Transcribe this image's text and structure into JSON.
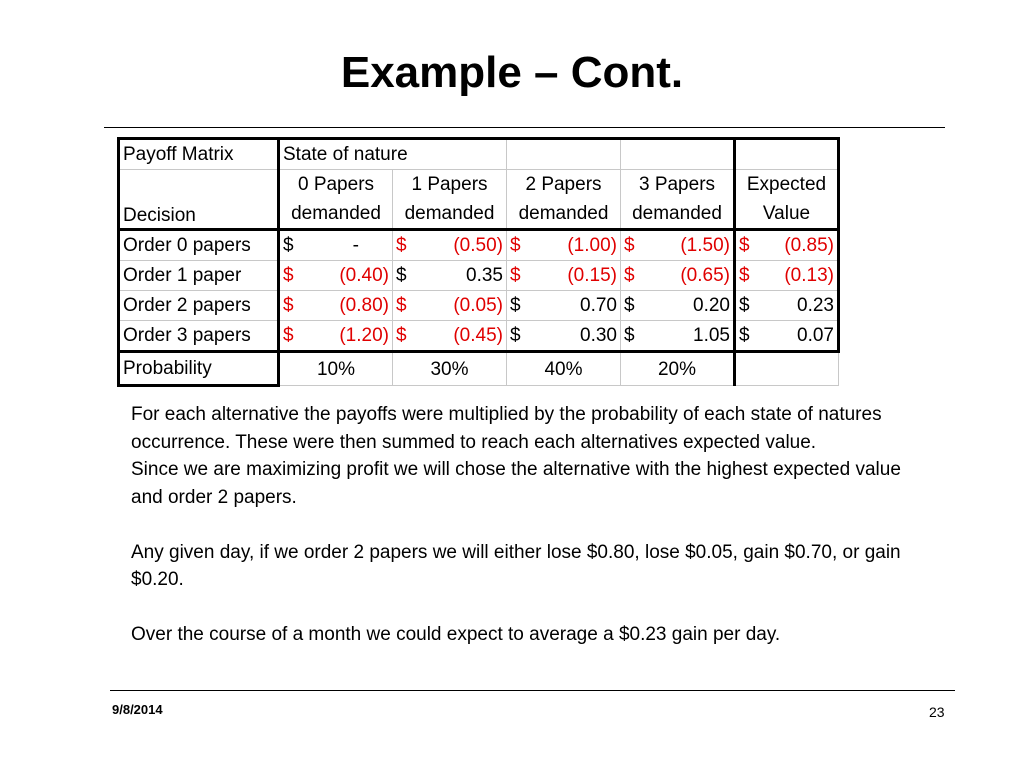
{
  "slide": {
    "title": "Example – Cont.",
    "date": "9/8/2014",
    "page_number": "23"
  },
  "table": {
    "corner_label": "Payoff Matrix",
    "state_header": "State of nature",
    "decision_label": "Decision",
    "columns": [
      {
        "line1": "0 Papers",
        "line2": "demanded"
      },
      {
        "line1": "1 Papers",
        "line2": "demanded"
      },
      {
        "line1": "2 Papers",
        "line2": "demanded"
      },
      {
        "line1": "3 Papers",
        "line2": "demanded"
      },
      {
        "line1": "Expected",
        "line2": "Value"
      }
    ],
    "rows": [
      {
        "label": "Order 0 papers",
        "cells": [
          {
            "sym": "$",
            "val": "-",
            "neg": false
          },
          {
            "sym": "$",
            "val": "(0.50)",
            "neg": true
          },
          {
            "sym": "$",
            "val": "(1.00)",
            "neg": true
          },
          {
            "sym": "$",
            "val": "(1.50)",
            "neg": true
          },
          {
            "sym": "$",
            "val": "(0.85)",
            "neg": true
          }
        ]
      },
      {
        "label": "Order 1 paper",
        "cells": [
          {
            "sym": "$",
            "val": "(0.40)",
            "neg": true
          },
          {
            "sym": "$",
            "val": "0.35",
            "neg": false
          },
          {
            "sym": "$",
            "val": "(0.15)",
            "neg": true
          },
          {
            "sym": "$",
            "val": "(0.65)",
            "neg": true
          },
          {
            "sym": "$",
            "val": "(0.13)",
            "neg": true
          }
        ]
      },
      {
        "label": "Order 2 papers",
        "cells": [
          {
            "sym": "$",
            "val": "(0.80)",
            "neg": true
          },
          {
            "sym": "$",
            "val": "(0.05)",
            "neg": true
          },
          {
            "sym": "$",
            "val": "0.70",
            "neg": false
          },
          {
            "sym": "$",
            "val": "0.20",
            "neg": false
          },
          {
            "sym": "$",
            "val": "0.23",
            "neg": false
          }
        ]
      },
      {
        "label": "Order 3 papers",
        "cells": [
          {
            "sym": "$",
            "val": "(1.20)",
            "neg": true
          },
          {
            "sym": "$",
            "val": "(0.45)",
            "neg": true
          },
          {
            "sym": "$",
            "val": "0.30",
            "neg": false
          },
          {
            "sym": "$",
            "val": "1.05",
            "neg": false
          },
          {
            "sym": "$",
            "val": "0.07",
            "neg": false
          }
        ]
      }
    ],
    "probability_label": "Probability",
    "probabilities": [
      "10%",
      "30%",
      "40%",
      "20%",
      ""
    ]
  },
  "body": {
    "paragraph1": "For each alternative the payoffs were multiplied by the probability of each state of natures occurrence.  These were then summed to reach each alternatives expected value.",
    "paragraph2": "Since we are maximizing profit we will chose the alternative with the highest expected value and order 2 papers.",
    "paragraph3": "Any given day, if we order 2 papers we will either lose $0.80, lose $0.05, gain $0.70, or gain $0.20.",
    "paragraph4": "Over the course of a month we could expect to average a $0.23 gain per day."
  },
  "colors": {
    "negative_value": "#e00000",
    "text": "#000000",
    "grid": "#c8c8c8"
  }
}
